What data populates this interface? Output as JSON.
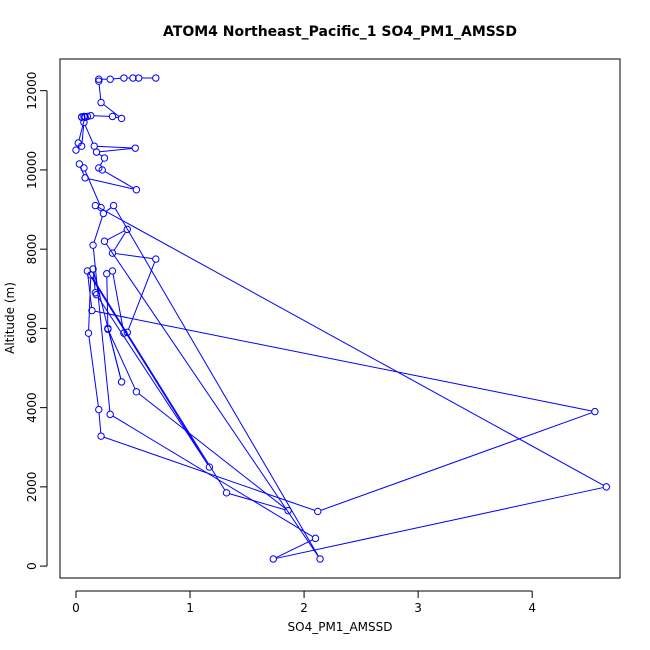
{
  "chart_data": {
    "type": "line",
    "title": "ATOM4 Northeast_Pacific_1 SO4_PM1_AMSSD",
    "xlabel": "SO4_PM1_AMSSD",
    "ylabel": "Altitude (m)",
    "xlim": [
      -0.14,
      4.77
    ],
    "ylim": [
      -300,
      12800
    ],
    "xticks": [
      0,
      1,
      2,
      3,
      4
    ],
    "xtick_labels": [
      "0",
      "1",
      "2",
      "3",
      "4"
    ],
    "yticks": [
      0,
      2000,
      4000,
      6000,
      8000,
      10000,
      12000
    ],
    "ytick_labels": [
      "0",
      "2000",
      "4000",
      "6000",
      "8000",
      "10000",
      "12000"
    ],
    "grid": false,
    "series": [
      {
        "color": "#0000ff",
        "marker": "open-circle",
        "points": [
          [
            0.7,
            12320
          ],
          [
            0.55,
            12320
          ],
          [
            0.5,
            12320
          ],
          [
            0.42,
            12320
          ],
          [
            0.3,
            12290
          ],
          [
            0.2,
            12290
          ],
          [
            0.2,
            12240
          ],
          [
            0.22,
            11700
          ],
          [
            0.4,
            11300
          ],
          [
            0.32,
            11350
          ],
          [
            0.13,
            11370
          ],
          [
            0.07,
            11350
          ],
          [
            0.05,
            11330
          ],
          [
            0.08,
            11330
          ],
          [
            0.1,
            11350
          ],
          [
            0.05,
            11340
          ],
          [
            0.08,
            11340
          ],
          [
            0.02,
            10680
          ],
          [
            0.0,
            10500
          ],
          [
            0.05,
            10600
          ],
          [
            0.07,
            11200
          ],
          [
            0.16,
            10600
          ],
          [
            0.52,
            10550
          ],
          [
            0.18,
            10450
          ],
          [
            0.25,
            10300
          ],
          [
            0.2,
            10050
          ],
          [
            0.23,
            10000
          ],
          [
            0.53,
            9500
          ],
          [
            0.08,
            9800
          ],
          [
            0.03,
            10150
          ],
          [
            0.07,
            10050
          ],
          [
            0.22,
            9050
          ],
          [
            0.17,
            9100
          ],
          [
            4.65,
            2000
          ],
          [
            1.73,
            180
          ],
          [
            2.1,
            700
          ],
          [
            0.3,
            3830
          ],
          [
            0.15,
            8100
          ],
          [
            0.24,
            8900
          ],
          [
            0.33,
            9100
          ],
          [
            2.14,
            180
          ],
          [
            0.25,
            8200
          ],
          [
            0.45,
            8500
          ],
          [
            0.32,
            7900
          ],
          [
            0.7,
            7750
          ],
          [
            0.45,
            5900
          ],
          [
            0.42,
            5880
          ],
          [
            0.32,
            7450
          ],
          [
            0.27,
            7380
          ],
          [
            0.28,
            6000
          ],
          [
            0.4,
            4650
          ],
          [
            0.15,
            7500
          ],
          [
            0.17,
            6900
          ],
          [
            0.18,
            6850
          ],
          [
            1.17,
            2500
          ],
          [
            0.1,
            7450
          ],
          [
            0.14,
            6450
          ],
          [
            4.55,
            3900
          ],
          [
            2.12,
            1380
          ],
          [
            0.22,
            3280
          ],
          [
            0.2,
            3950
          ],
          [
            0.11,
            5880
          ],
          [
            0.13,
            7350
          ],
          [
            1.32,
            1850
          ],
          [
            1.86,
            1400
          ],
          [
            0.53,
            4400
          ],
          [
            0.28,
            5980
          ]
        ]
      }
    ]
  }
}
